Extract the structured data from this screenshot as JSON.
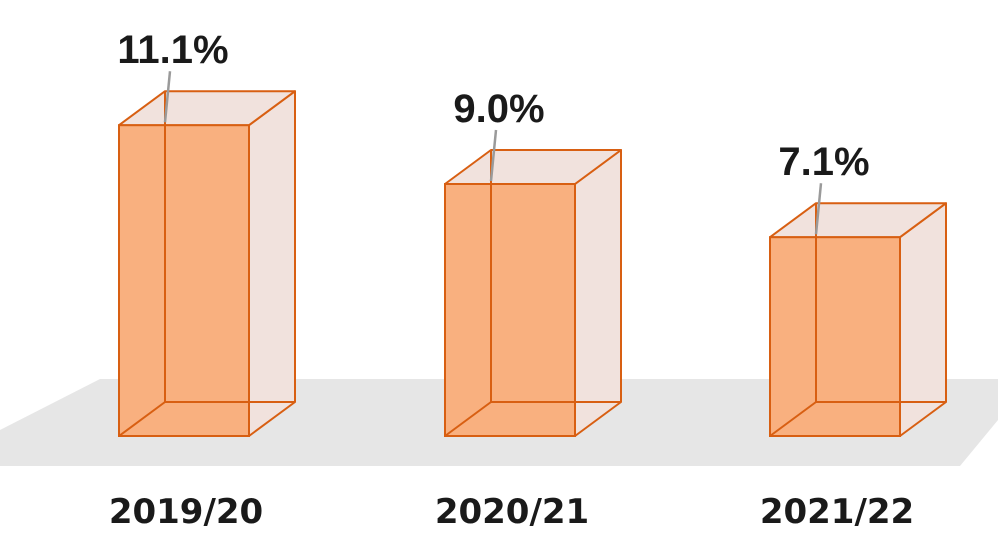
{
  "chart_data": {
    "type": "bar",
    "style": "3d-outlined",
    "categories": [
      "2019/20",
      "2020/21",
      "2021/22"
    ],
    "values": [
      11.1,
      9.0,
      7.1
    ],
    "value_labels": [
      "11.1%",
      "9.0%",
      "7.1%"
    ],
    "title": "",
    "xlabel": "",
    "ylabel": "",
    "ylim": [
      0,
      12
    ],
    "grid": false,
    "legend": "none",
    "colors": {
      "bar_fill": "#f9b07f",
      "bar_edge": "#d85f12",
      "back_face": "#f1e2dd",
      "floor": "#e6e6e6",
      "leader": "#9a9a9a",
      "text": "#1a1a1a"
    }
  }
}
